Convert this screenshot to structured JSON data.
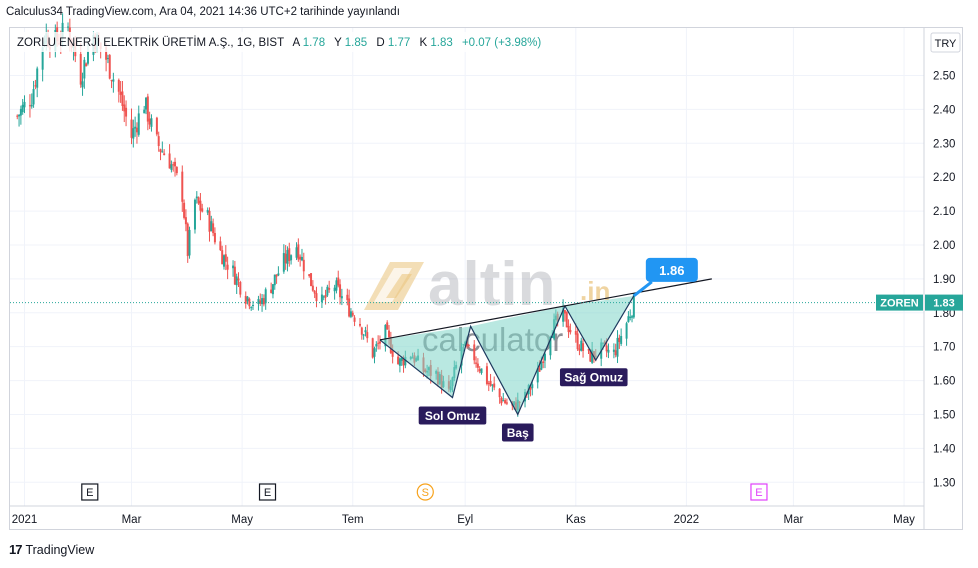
{
  "header": {
    "published_line": "Calculus34 TradingView.com, Ara 04, 2021 14:36 UTC+2 tarihinde yayınlandı",
    "symbol_info": "ZORLU ENERJİ ELEKTRİK ÜRETİM A.Ş., 1G, BIST",
    "o_label": "A",
    "o_value": "1.78",
    "h_label": "Y",
    "h_value": "1.85",
    "l_label": "D",
    "l_value": "1.77",
    "c_label": "K",
    "c_value": "1.83",
    "change": "+0.07 (+3.98%)",
    "currency": "TRY"
  },
  "price_tag": {
    "symbol": "ZOREN",
    "value": "1.83"
  },
  "watermark": {
    "brand_top": "altin",
    "brand_suffix": ".in",
    "brand_bottom": "calculator"
  },
  "annotations": {
    "target_callout": "1.86",
    "left_shoulder": "Sol Omuz",
    "head": "Baş",
    "right_shoulder": "Sağ Omuz"
  },
  "event_markers": [
    {
      "letter": "E",
      "x": "2021-02-06",
      "color": "#131722"
    },
    {
      "letter": "E",
      "x": "2021-05-15",
      "color": "#131722"
    },
    {
      "letter": "S",
      "x": "2021-08-10",
      "color": "#f7a21b"
    },
    {
      "letter": "E",
      "x": "2022-02-10",
      "color": "#e040fb"
    }
  ],
  "footer": {
    "brand": "TradingView",
    "mark": "17"
  },
  "colors": {
    "up": "#26a69a",
    "down": "#ef5350",
    "pattern_fill": "#7fd6c9",
    "callout": "#2196f3",
    "label_bg": "#2a1b5c"
  },
  "chart_data": {
    "type": "candlestick",
    "title": "ZORLU ENERJİ ELEKTRİK ÜRETİM A.Ş., 1G, BIST",
    "xlabel": "",
    "ylabel": "",
    "ylim": [
      1.23,
      2.64
    ],
    "xlim": [
      "2020-12-24",
      "2022-05-12"
    ],
    "y_ticks": [
      "1.30",
      "1.40",
      "1.50",
      "1.60",
      "1.70",
      "1.80",
      "1.90",
      "2.00",
      "2.10",
      "2.20",
      "2.30",
      "2.40",
      "2.50"
    ],
    "x_ticks": [
      {
        "label": "2021",
        "x": "2021-01-01"
      },
      {
        "label": "Mar",
        "x": "2021-03-01"
      },
      {
        "label": "May",
        "x": "2021-05-01"
      },
      {
        "label": "Tem",
        "x": "2021-07-01"
      },
      {
        "label": "Eyl",
        "x": "2021-09-01"
      },
      {
        "label": "Kas",
        "x": "2021-11-01"
      },
      {
        "label": "2022",
        "x": "2022-01-01"
      },
      {
        "label": "Mar",
        "x": "2022-03-01"
      },
      {
        "label": "May",
        "x": "2022-05-01"
      }
    ],
    "last_price": 1.83,
    "price_path": [
      [
        "2020-12-28",
        2.38
      ],
      [
        "2021-01-05",
        2.44
      ],
      [
        "2021-01-12",
        2.62
      ],
      [
        "2021-01-18",
        2.6
      ],
      [
        "2021-01-25",
        2.64
      ],
      [
        "2021-02-01",
        2.5
      ],
      [
        "2021-02-08",
        2.62
      ],
      [
        "2021-02-15",
        2.55
      ],
      [
        "2021-02-22",
        2.45
      ],
      [
        "2021-03-01",
        2.32
      ],
      [
        "2021-03-08",
        2.42
      ],
      [
        "2021-03-15",
        2.3
      ],
      [
        "2021-03-22",
        2.25
      ],
      [
        "2021-03-29",
        2.15
      ],
      [
        "2021-04-01",
        1.98
      ],
      [
        "2021-04-05",
        2.13
      ],
      [
        "2021-04-12",
        2.08
      ],
      [
        "2021-04-19",
        1.98
      ],
      [
        "2021-04-26",
        1.92
      ],
      [
        "2021-05-03",
        1.85
      ],
      [
        "2021-05-10",
        1.82
      ],
      [
        "2021-05-17",
        1.88
      ],
      [
        "2021-05-24",
        1.95
      ],
      [
        "2021-05-31",
        2.0
      ],
      [
        "2021-06-07",
        1.9
      ],
      [
        "2021-06-14",
        1.83
      ],
      [
        "2021-06-21",
        1.88
      ],
      [
        "2021-06-28",
        1.82
      ],
      [
        "2021-07-05",
        1.77
      ],
      [
        "2021-07-12",
        1.68
      ],
      [
        "2021-07-19",
        1.74
      ],
      [
        "2021-07-26",
        1.65
      ],
      [
        "2021-08-02",
        1.68
      ],
      [
        "2021-08-09",
        1.63
      ],
      [
        "2021-08-16",
        1.62
      ],
      [
        "2021-08-23",
        1.56
      ],
      [
        "2021-08-30",
        1.7
      ],
      [
        "2021-09-06",
        1.67
      ],
      [
        "2021-09-13",
        1.6
      ],
      [
        "2021-09-20",
        1.55
      ],
      [
        "2021-09-27",
        1.52
      ],
      [
        "2021-10-04",
        1.55
      ],
      [
        "2021-10-11",
        1.62
      ],
      [
        "2021-10-18",
        1.75
      ],
      [
        "2021-10-25",
        1.79
      ],
      [
        "2021-11-01",
        1.72
      ],
      [
        "2021-11-08",
        1.67
      ],
      [
        "2021-11-15",
        1.69
      ],
      [
        "2021-11-22",
        1.68
      ],
      [
        "2021-11-29",
        1.77
      ],
      [
        "2021-12-03",
        1.83
      ]
    ],
    "pattern": {
      "name": "Head and Shoulders (inverse)",
      "points": [
        {
          "label": "start",
          "x": "2021-07-16",
          "y": 1.72
        },
        {
          "label": "Sol Omuz",
          "x": "2021-08-25",
          "y": 1.55
        },
        {
          "label": "neck-1",
          "x": "2021-09-04",
          "y": 1.76
        },
        {
          "label": "Baş",
          "x": "2021-09-30",
          "y": 1.5
        },
        {
          "label": "neck-2",
          "x": "2021-10-26",
          "y": 1.82
        },
        {
          "label": "Sağ Omuz",
          "x": "2021-11-12",
          "y": 1.66
        },
        {
          "label": "end",
          "x": "2021-12-03",
          "y": 1.85
        }
      ],
      "neckline": [
        [
          "2021-07-16",
          1.72
        ],
        [
          "2022-01-15",
          1.9
        ]
      ],
      "target": 1.86
    }
  }
}
